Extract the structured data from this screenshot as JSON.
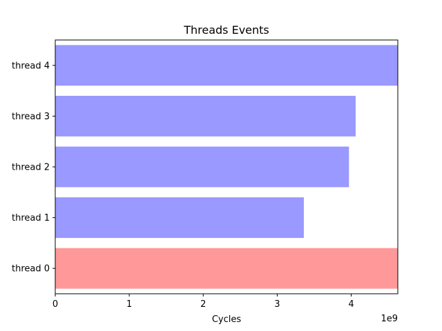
{
  "chart_data": {
    "type": "bar",
    "orientation": "horizontal",
    "title": "Threads Events",
    "xlabel": "Cycles",
    "ylabel": "",
    "x_offset_label": "1e9",
    "xlim": [
      0,
      4.63
    ],
    "x_ticks": [
      0,
      1,
      2,
      3,
      4
    ],
    "x_tick_labels": [
      "0",
      "1",
      "2",
      "3",
      "4"
    ],
    "grid": false,
    "categories": [
      "thread 0",
      "thread 1",
      "thread 2",
      "thread 3",
      "thread 4"
    ],
    "values": [
      4.63,
      3.36,
      3.97,
      4.06,
      4.63
    ],
    "colors": [
      "#ff9999",
      "#9999ff",
      "#9999ff",
      "#9999ff",
      "#9999ff"
    ]
  }
}
